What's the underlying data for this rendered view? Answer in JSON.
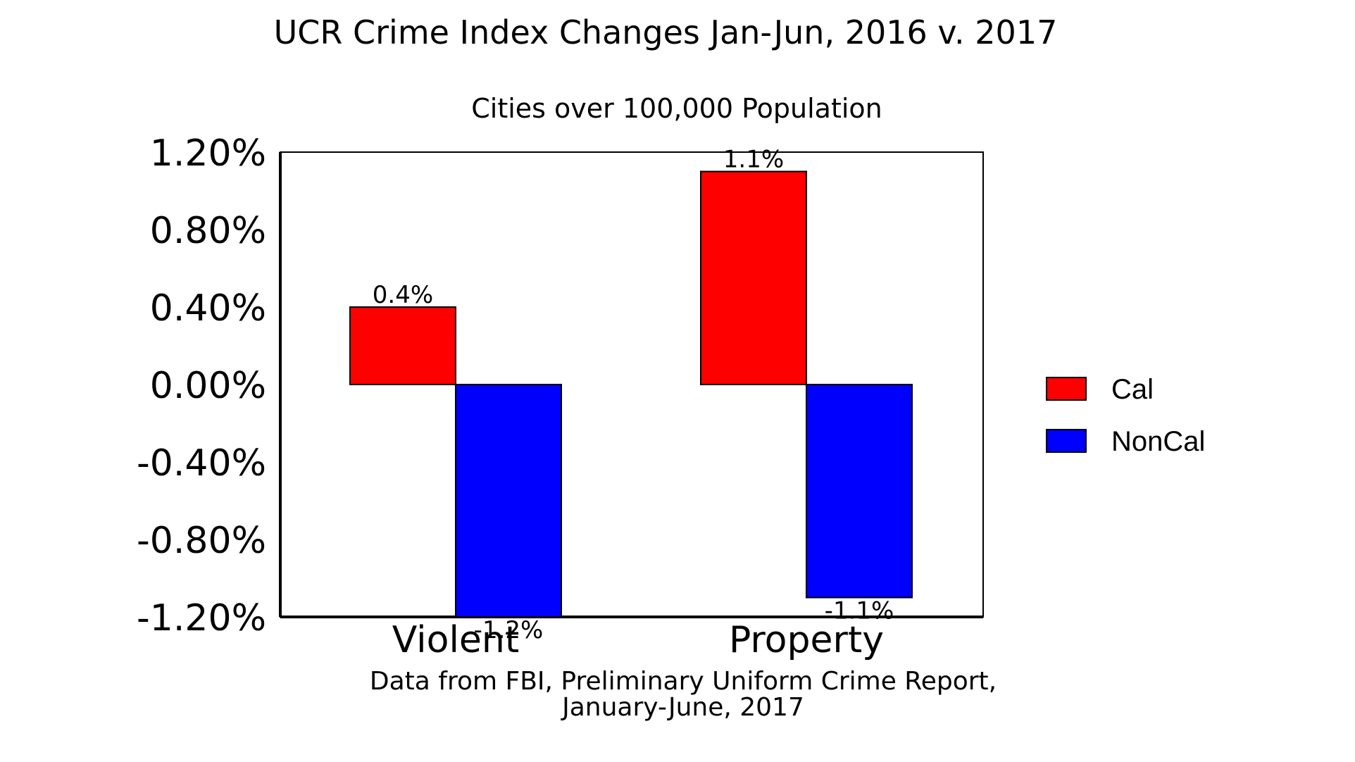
{
  "chart_data": {
    "type": "bar",
    "title": "UCR Crime Index Changes Jan-Jun, 2016 v. 2017",
    "subtitle": "Cities over 100,000 Population",
    "categories": [
      "Violent",
      "Property"
    ],
    "series": [
      {
        "name": "Cal",
        "values": [
          0.4,
          1.1
        ],
        "labels": [
          "0.4%",
          "1.1%"
        ],
        "color": "#ff0000"
      },
      {
        "name": "NonCal",
        "values": [
          -1.2,
          -1.1
        ],
        "labels": [
          "-1.2%",
          "-1.1%"
        ],
        "color": "#0000ff"
      }
    ],
    "ylim": [
      -1.2,
      1.2
    ],
    "yticks": [
      1.2,
      0.8,
      0.4,
      0.0,
      -0.4,
      -0.8,
      -1.2
    ],
    "ytick_labels": [
      "1.20%",
      "0.80%",
      "0.40%",
      "0.00%",
      "-0.40%",
      "-0.80%",
      "-1.20%"
    ],
    "xlabel": "",
    "ylabel": "",
    "grid": false,
    "legend_position": "right",
    "source_lines": [
      "Data from FBI, Preliminary Uniform Crime Report,",
      "January-June, 2017"
    ]
  }
}
